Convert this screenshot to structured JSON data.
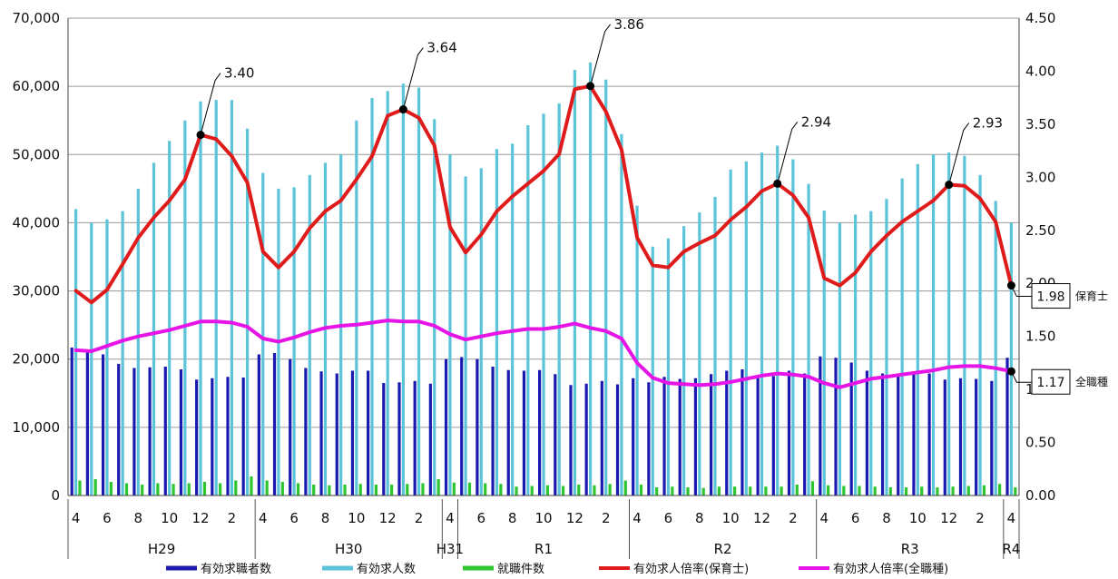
{
  "chart_data": {
    "type": "bar",
    "months": [
      "4",
      "5",
      "6",
      "7",
      "8",
      "9",
      "10",
      "11",
      "12",
      "1",
      "2",
      "3",
      "4",
      "5",
      "6",
      "7",
      "8",
      "9",
      "10",
      "11",
      "12",
      "1",
      "2",
      "3",
      "4",
      "5",
      "6",
      "7",
      "8",
      "9",
      "10",
      "11",
      "12",
      "1",
      "2",
      "3",
      "4",
      "5",
      "6",
      "7",
      "8",
      "9",
      "10",
      "11",
      "12",
      "1",
      "2",
      "3",
      "4",
      "5",
      "6",
      "7",
      "8",
      "9",
      "10",
      "11",
      "12",
      "1",
      "2",
      "3",
      "4"
    ],
    "x_tick_labels": [
      "4",
      "",
      "6",
      "",
      "8",
      "",
      "10",
      "",
      "12",
      "",
      "2",
      "",
      "4",
      "",
      "6",
      "",
      "8",
      "",
      "10",
      "",
      "12",
      "",
      "2",
      "",
      "4",
      "",
      "6",
      "",
      "8",
      "",
      "10",
      "",
      "12",
      "",
      "2",
      "",
      "4",
      "",
      "6",
      "",
      "8",
      "",
      "10",
      "",
      "12",
      "",
      "2",
      "",
      "4",
      "",
      "6",
      "",
      "8",
      "",
      "10",
      "",
      "12",
      "",
      "2",
      "",
      "4"
    ],
    "year_groups": [
      {
        "label": "H29",
        "start": 0,
        "end": 12
      },
      {
        "label": "H30",
        "start": 12,
        "end": 24
      },
      {
        "label": "H31",
        "start": 24,
        "end": 25
      },
      {
        "label": "R1",
        "start": 25,
        "end": 36
      },
      {
        "label": "R2",
        "start": 36,
        "end": 48
      },
      {
        "label": "R3",
        "start": 48,
        "end": 60
      },
      {
        "label": "R4",
        "start": 60,
        "end": 61
      }
    ],
    "y_left": {
      "min": 0,
      "max": 70000,
      "ticks": [
        "0",
        "10,000",
        "20,000",
        "30,000",
        "40,000",
        "50,000",
        "60,000",
        "70,000"
      ]
    },
    "y_right": {
      "min": 0,
      "max": 4.5,
      "ticks": [
        "0.00",
        "0.50",
        "1.00",
        "1.50",
        "2.00",
        "2.50",
        "3.00",
        "3.50",
        "4.00",
        "4.50"
      ]
    },
    "grid": "horizontal",
    "series": [
      {
        "name": "有効求職者数",
        "kind": "bar",
        "axis": "left",
        "color": "#1a1ab0",
        "values": [
          21700,
          21300,
          20700,
          19300,
          18700,
          18800,
          18900,
          18500,
          17000,
          17200,
          17400,
          17300,
          20700,
          20900,
          20000,
          18700,
          18200,
          17900,
          18300,
          18300,
          16500,
          16600,
          16800,
          16400,
          20000,
          20300,
          20000,
          18900,
          18400,
          18300,
          18400,
          17800,
          16200,
          16400,
          16800,
          16300,
          17200,
          16600,
          17400,
          17100,
          17200,
          17800,
          18300,
          18500,
          17700,
          17500,
          18300,
          17900,
          20400,
          20200,
          19500,
          18300,
          17900,
          17600,
          17900,
          17900,
          17000,
          17200,
          17100,
          16800,
          20200
        ]
      },
      {
        "name": "有効求人数",
        "kind": "bar",
        "axis": "left",
        "color": "#5cc4d8",
        "values": [
          42000,
          40000,
          40500,
          41700,
          45000,
          48800,
          52000,
          55000,
          57800,
          58000,
          58000,
          53800,
          47300,
          45000,
          45200,
          47000,
          48800,
          50000,
          55000,
          58300,
          59300,
          60400,
          59800,
          55200,
          50000,
          46800,
          48000,
          50800,
          51600,
          54300,
          56000,
          57500,
          62400,
          63500,
          61000,
          53000,
          42500,
          36500,
          37700,
          39500,
          41500,
          43800,
          47800,
          49000,
          50300,
          51300,
          49300,
          45700,
          41800,
          40000,
          41200,
          41700,
          43500,
          46500,
          48600,
          50000,
          50300,
          49800,
          47000,
          43200,
          40000
        ]
      },
      {
        "name": "就職件数",
        "kind": "bar",
        "axis": "left",
        "color": "#2ec52e",
        "values": [
          2200,
          2400,
          2000,
          1800,
          1600,
          1800,
          1700,
          1800,
          2000,
          1800,
          2200,
          2800,
          2200,
          2000,
          1800,
          1600,
          1500,
          1600,
          1700,
          1600,
          1600,
          1700,
          1800,
          2400,
          1900,
          1900,
          1800,
          1700,
          1300,
          1400,
          1500,
          1400,
          1600,
          1500,
          1700,
          2200,
          1600,
          1200,
          1300,
          1200,
          1100,
          1300,
          1300,
          1300,
          1300,
          1300,
          1600,
          2100,
          1500,
          1400,
          1400,
          1300,
          1200,
          1200,
          1300,
          1200,
          1300,
          1400,
          1500,
          1700,
          1200
        ]
      },
      {
        "name": "有効求人倍率(保育士)",
        "kind": "line",
        "axis": "right",
        "color": "#e01b1b",
        "values": [
          1.93,
          1.82,
          1.94,
          2.18,
          2.43,
          2.62,
          2.78,
          2.98,
          3.4,
          3.36,
          3.2,
          2.95,
          2.3,
          2.15,
          2.3,
          2.52,
          2.68,
          2.78,
          2.98,
          3.2,
          3.58,
          3.64,
          3.56,
          3.3,
          2.53,
          2.29,
          2.46,
          2.68,
          2.82,
          2.94,
          3.06,
          3.22,
          3.83,
          3.86,
          3.62,
          3.26,
          2.43,
          2.17,
          2.15,
          2.3,
          2.38,
          2.45,
          2.6,
          2.72,
          2.87,
          2.94,
          2.83,
          2.62,
          2.05,
          1.98,
          2.1,
          2.3,
          2.45,
          2.58,
          2.68,
          2.78,
          2.93,
          2.92,
          2.8,
          2.58,
          1.98
        ]
      },
      {
        "name": "有効求人倍率(全職種)",
        "kind": "line",
        "axis": "right",
        "color": "#e614e6",
        "values": [
          1.37,
          1.36,
          1.41,
          1.46,
          1.5,
          1.53,
          1.56,
          1.6,
          1.64,
          1.64,
          1.63,
          1.59,
          1.48,
          1.45,
          1.49,
          1.54,
          1.58,
          1.6,
          1.61,
          1.63,
          1.65,
          1.64,
          1.64,
          1.6,
          1.52,
          1.47,
          1.5,
          1.53,
          1.55,
          1.57,
          1.57,
          1.59,
          1.62,
          1.58,
          1.55,
          1.48,
          1.25,
          1.11,
          1.06,
          1.05,
          1.04,
          1.05,
          1.07,
          1.1,
          1.13,
          1.15,
          1.14,
          1.12,
          1.06,
          1.02,
          1.06,
          1.1,
          1.12,
          1.14,
          1.16,
          1.18,
          1.21,
          1.22,
          1.22,
          1.2,
          1.17
        ]
      }
    ],
    "callouts": [
      {
        "index": 8,
        "text": "3.40"
      },
      {
        "index": 21,
        "text": "3.64"
      },
      {
        "index": 33,
        "text": "3.86"
      },
      {
        "index": 45,
        "text": "2.94"
      },
      {
        "index": 56,
        "text": "2.93"
      }
    ],
    "end_labels": [
      {
        "series": 3,
        "value": "1.98",
        "name": "保育士"
      },
      {
        "series": 4,
        "value": "1.17",
        "name": "全職種"
      }
    ],
    "legend_position": "bottom"
  }
}
